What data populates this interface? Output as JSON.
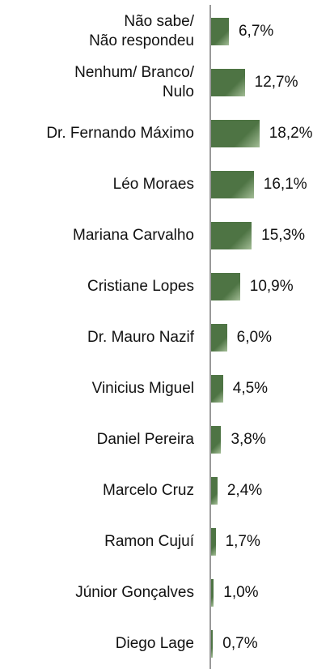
{
  "chart_data": {
    "type": "bar",
    "orientation": "horizontal",
    "categories": [
      "Não sabe/\nNão respondeu",
      "Nenhum/ Branco/\nNulo",
      "Dr. Fernando Máximo",
      "Léo Moraes",
      "Mariana Carvalho",
      "Cristiane Lopes",
      "Dr. Mauro Nazif",
      "Vinicius Miguel",
      "Daniel Pereira",
      "Marcelo Cruz",
      "Ramon Cujuí",
      "Júnior Gonçalves",
      "Diego Lage"
    ],
    "values": [
      6.7,
      12.7,
      18.2,
      16.1,
      15.3,
      10.9,
      6.0,
      4.5,
      3.8,
      2.4,
      1.7,
      1.0,
      0.7
    ],
    "value_labels": [
      "6,7%",
      "12,7%",
      "18,2%",
      "16,1%",
      "15,3%",
      "10,9%",
      "6,0%",
      "4,5%",
      "3,8%",
      "2,4%",
      "1,7%",
      "1,0%",
      "0,7%"
    ],
    "color": "#4e7444",
    "xlim": [
      0,
      25
    ]
  }
}
